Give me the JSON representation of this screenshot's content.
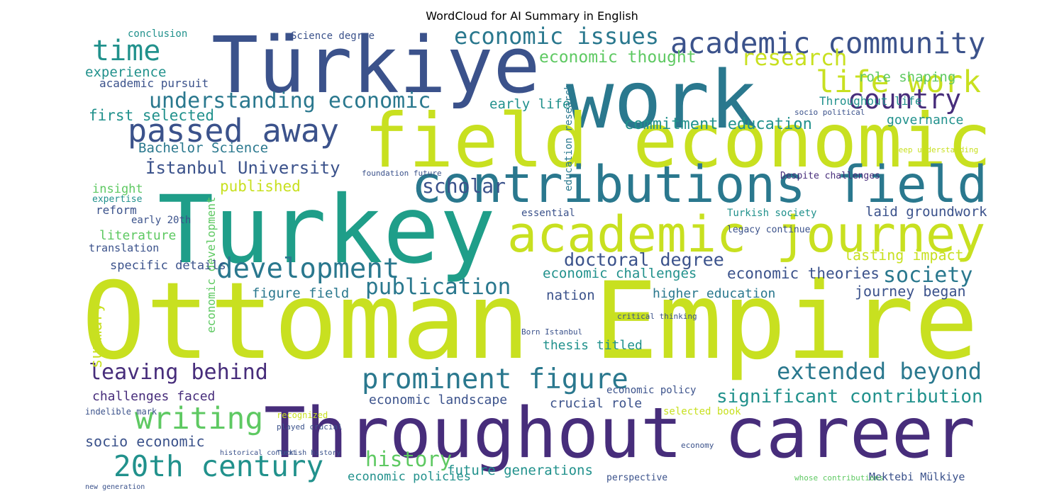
{
  "chart_data": {
    "type": "wordcloud",
    "title": "WordCloud for AI Summary in English",
    "words": [
      {
        "text": "Ottoman Empire",
        "color": "#c8e020"
      },
      {
        "text": "Throughout career",
        "color": "#472d7b"
      },
      {
        "text": "Turkey",
        "color": "#1f9e89"
      },
      {
        "text": "Türkiye",
        "color": "#3b528b"
      },
      {
        "text": "work",
        "color": "#2a788e"
      },
      {
        "text": "field economic",
        "color": "#c8e020"
      },
      {
        "text": "contributions field",
        "color": "#2a788e"
      },
      {
        "text": "academic journey",
        "color": "#c8e020"
      },
      {
        "text": "academic community",
        "color": "#3b528b"
      },
      {
        "text": "economic issues",
        "color": "#2a788e"
      },
      {
        "text": "time",
        "color": "#21918c"
      },
      {
        "text": "research",
        "color": "#c8e020"
      },
      {
        "text": "life work",
        "color": "#c8e020"
      },
      {
        "text": "economic thought",
        "color": "#5ec962"
      },
      {
        "text": "role shaping",
        "color": "#5ec962"
      },
      {
        "text": "experience",
        "color": "#21918c"
      },
      {
        "text": "academic pursuit",
        "color": "#3b528b"
      },
      {
        "text": "understanding economic",
        "color": "#2a788e"
      },
      {
        "text": "country",
        "color": "#472d7b"
      },
      {
        "text": "early life",
        "color": "#21918c"
      },
      {
        "text": "Throughout life",
        "color": "#21918c"
      },
      {
        "text": "first selected",
        "color": "#21918c"
      },
      {
        "text": "passed away",
        "color": "#3b528b"
      },
      {
        "text": "commitment education",
        "color": "#21918c"
      },
      {
        "text": "governance",
        "color": "#21918c"
      },
      {
        "text": "Bachelor Science",
        "color": "#2a788e"
      },
      {
        "text": "İstanbul University",
        "color": "#3b528b"
      },
      {
        "text": "scholar",
        "color": "#3b528b"
      },
      {
        "text": "published",
        "color": "#c8e020"
      },
      {
        "text": "laid groundwork",
        "color": "#3b528b"
      },
      {
        "text": "doctoral degree",
        "color": "#3b528b"
      },
      {
        "text": "development",
        "color": "#2a788e"
      },
      {
        "text": "society",
        "color": "#2a788e"
      },
      {
        "text": "lasting impact",
        "color": "#c8e020"
      },
      {
        "text": "economic challenges",
        "color": "#21918c"
      },
      {
        "text": "economic theories",
        "color": "#3b528b"
      },
      {
        "text": "publication",
        "color": "#2a788e"
      },
      {
        "text": "figure field",
        "color": "#2a788e"
      },
      {
        "text": "higher education",
        "color": "#2a788e"
      },
      {
        "text": "journey began",
        "color": "#3b528b"
      },
      {
        "text": "nation",
        "color": "#3b528b"
      },
      {
        "text": "leaving behind",
        "color": "#472d7b"
      },
      {
        "text": "prominent figure",
        "color": "#2a788e"
      },
      {
        "text": "extended beyond",
        "color": "#2a788e"
      },
      {
        "text": "significant contribution",
        "color": "#21918c"
      },
      {
        "text": "challenges faced",
        "color": "#472d7b"
      },
      {
        "text": "economic landscape",
        "color": "#3b528b"
      },
      {
        "text": "writing",
        "color": "#5ec962"
      },
      {
        "text": "socio economic",
        "color": "#3b528b"
      },
      {
        "text": "20th century",
        "color": "#21918c"
      },
      {
        "text": "history",
        "color": "#5ec962"
      },
      {
        "text": "future generations",
        "color": "#21918c"
      },
      {
        "text": "economic policies",
        "color": "#21918c"
      },
      {
        "text": "crucial role",
        "color": "#3b528b"
      },
      {
        "text": "thesis titled",
        "color": "#21918c"
      },
      {
        "text": "insight",
        "color": "#5ec962"
      },
      {
        "text": "reform",
        "color": "#3b528b"
      },
      {
        "text": "literature",
        "color": "#5ec962"
      },
      {
        "text": "conclusion",
        "color": "#21918c"
      },
      {
        "text": "Science degree",
        "color": "#3b528b"
      },
      {
        "text": "summary",
        "color": "#c8e020"
      },
      {
        "text": "economic development",
        "color": "#5ec962"
      },
      {
        "text": "education research",
        "color": "#2a788e"
      },
      {
        "text": "Mektebi Mülkiye",
        "color": "#3b528b"
      },
      {
        "text": "translation",
        "color": "#3b528b"
      },
      {
        "text": "specific details",
        "color": "#3b528b"
      },
      {
        "text": "early 20th",
        "color": "#3b528b"
      },
      {
        "text": "essential",
        "color": "#3b528b"
      },
      {
        "text": "legacy continue",
        "color": "#3b528b"
      },
      {
        "text": "Turkish society",
        "color": "#21918c"
      },
      {
        "text": "expertise",
        "color": "#21918c"
      },
      {
        "text": "economic policy",
        "color": "#3b528b"
      },
      {
        "text": "selected book",
        "color": "#c8e020"
      },
      {
        "text": "recognized",
        "color": "#c8e020"
      },
      {
        "text": "played crucial",
        "color": "#3b528b"
      },
      {
        "text": "indelible mark",
        "color": "#3b528b"
      },
      {
        "text": "economy",
        "color": "#3b528b"
      },
      {
        "text": "perspective",
        "color": "#3b528b"
      },
      {
        "text": "whose contributions",
        "color": "#5ec962"
      },
      {
        "text": "foundation future",
        "color": "#3b528b"
      },
      {
        "text": "Born Istanbul",
        "color": "#3b528b"
      },
      {
        "text": "critical thinking",
        "color": "#3b528b"
      },
      {
        "text": "socio political",
        "color": "#3b528b"
      },
      {
        "text": "historical context",
        "color": "#3b528b"
      },
      {
        "text": "Turkish history",
        "color": "#3b528b"
      },
      {
        "text": "Despite challenges",
        "color": "#472d7b"
      },
      {
        "text": "deep understanding",
        "color": "#c8e020"
      },
      {
        "text": "new generation",
        "color": "#3b528b"
      }
    ]
  }
}
